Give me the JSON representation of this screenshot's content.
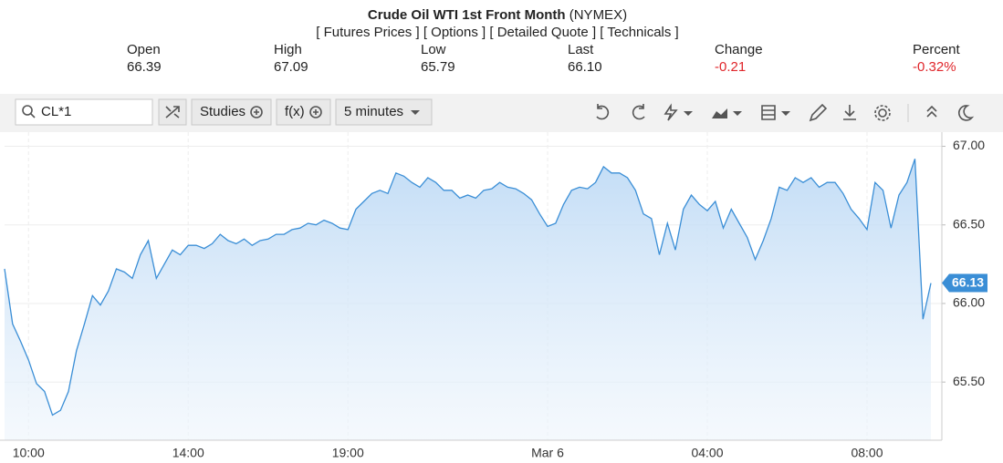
{
  "header": {
    "title": "Crude Oil WTI 1st Front Month",
    "exchange": "(NYMEX)",
    "links": [
      "[ Futures Prices ]",
      "[ Options ]",
      "[ Detailed Quote ]",
      "[ Technicals ]"
    ],
    "quote": [
      {
        "label": "Open",
        "value": "66.39"
      },
      {
        "label": "High",
        "value": "67.09"
      },
      {
        "label": "Low",
        "value": "65.79"
      },
      {
        "label": "Last",
        "value": "66.10"
      },
      {
        "label": "Change",
        "value": "-0.21"
      },
      {
        "label": "Percent",
        "value": "-0.32%"
      }
    ]
  },
  "toolbar": {
    "symbol": "CL*1",
    "studies": "Studies",
    "functions": "f(x)",
    "interval": "5 minutes"
  },
  "chart_data": {
    "type": "line",
    "color": "#3a8ed6",
    "grid": true,
    "categories": [
      null,
      null,
      null,
      "10:00",
      null,
      null,
      null,
      null,
      null,
      null,
      null,
      null,
      null,
      null,
      null,
      null,
      null,
      null,
      null,
      null,
      null,
      null,
      null,
      "14:00",
      null,
      null,
      null,
      null,
      null,
      null,
      null,
      null,
      null,
      null,
      null,
      null,
      null,
      null,
      null,
      null,
      null,
      null,
      null,
      "19:00",
      null,
      null,
      null,
      null,
      null,
      null,
      null,
      null,
      null,
      null,
      null,
      null,
      null,
      null,
      null,
      null,
      null,
      null,
      null,
      null,
      null,
      null,
      null,
      null,
      "Mar 6",
      null,
      null,
      null,
      null,
      null,
      null,
      null,
      null,
      null,
      null,
      null,
      null,
      null,
      null,
      null,
      null,
      null,
      null,
      null,
      "04:00",
      null,
      null,
      null,
      null,
      null,
      null,
      null,
      null,
      null,
      null,
      null,
      null,
      null,
      null,
      null,
      null,
      null,
      null,
      null,
      "08:00",
      null,
      null,
      null,
      null,
      null,
      null,
      null,
      null
    ],
    "values": [
      66.22,
      65.87,
      65.76,
      65.64,
      65.49,
      65.44,
      65.29,
      65.32,
      65.44,
      65.7,
      65.87,
      66.05,
      65.99,
      66.08,
      66.22,
      66.2,
      66.16,
      66.31,
      66.4,
      66.16,
      66.25,
      66.34,
      66.31,
      66.37,
      66.37,
      66.35,
      66.38,
      66.44,
      66.4,
      66.38,
      66.41,
      66.37,
      66.4,
      66.41,
      66.44,
      66.44,
      66.47,
      66.48,
      66.51,
      66.5,
      66.53,
      66.51,
      66.48,
      66.47,
      66.6,
      66.65,
      66.7,
      66.72,
      66.7,
      66.83,
      66.81,
      66.77,
      66.74,
      66.8,
      66.77,
      66.72,
      66.72,
      66.67,
      66.69,
      66.67,
      66.72,
      66.73,
      66.77,
      66.74,
      66.73,
      66.7,
      66.66,
      66.57,
      66.49,
      66.51,
      66.63,
      66.72,
      66.74,
      66.73,
      66.77,
      66.87,
      66.83,
      66.83,
      66.8,
      66.72,
      66.57,
      66.54,
      66.31,
      66.51,
      66.34,
      66.6,
      66.69,
      66.63,
      66.59,
      66.65,
      66.48,
      66.6,
      66.51,
      66.42,
      66.28,
      66.4,
      66.54,
      66.74,
      66.72,
      66.8,
      66.77,
      66.8,
      66.74,
      66.77,
      66.77,
      66.7,
      66.6,
      66.54,
      66.47,
      66.77,
      66.72,
      66.48,
      66.69,
      66.77,
      66.92,
      65.9,
      66.13
    ],
    "ylim": [
      65.13,
      67.09
    ],
    "yticks": [
      {
        "value": 65.5,
        "label": "65.50"
      },
      {
        "value": 66,
        "label": "66.00"
      },
      {
        "value": 66.5,
        "label": "66.50"
      },
      {
        "value": 67,
        "label": "67.00"
      }
    ]
  }
}
